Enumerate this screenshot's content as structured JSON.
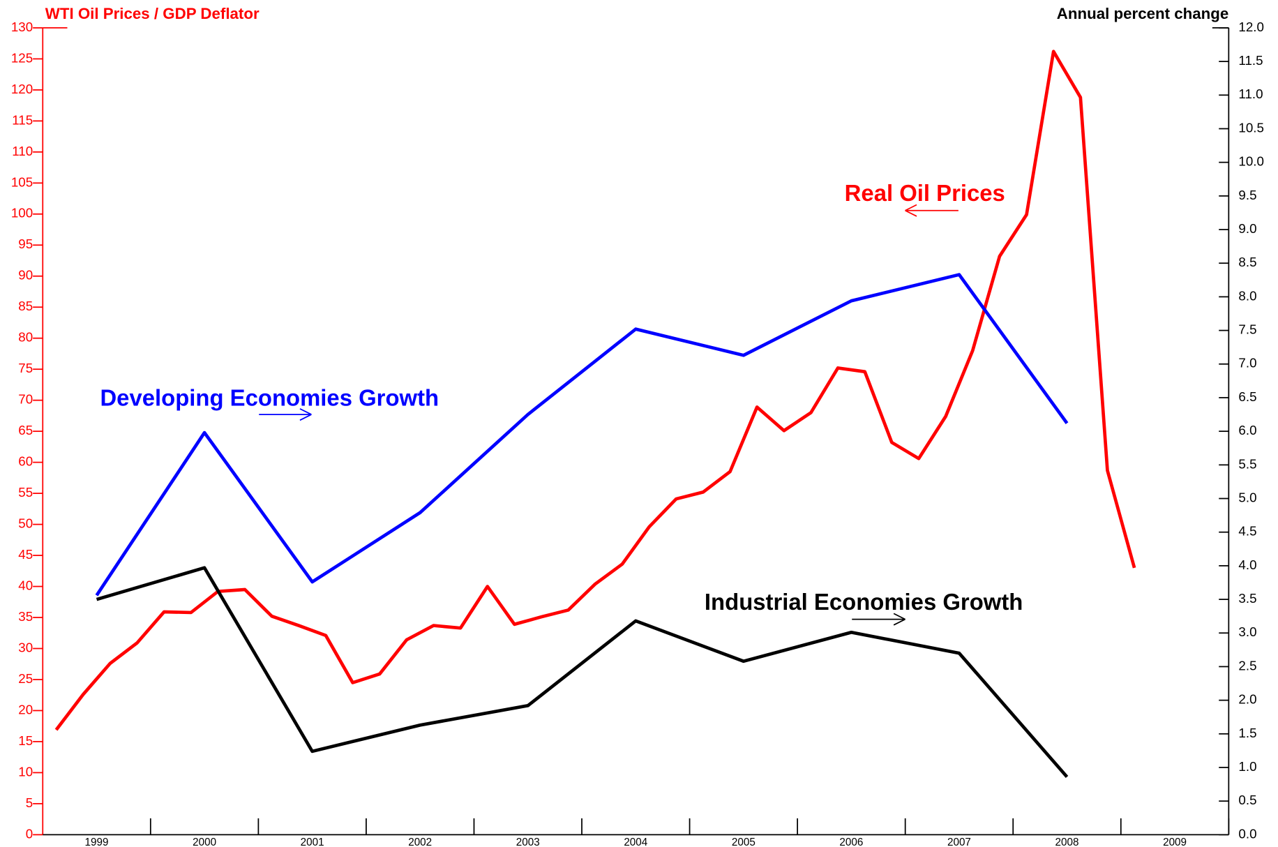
{
  "chart_data": {
    "type": "line",
    "title": "WTI Oil Prices / GDP Deflator",
    "y2_label": "Annual percent change",
    "xlim": [
      1998.5,
      2009.5
    ],
    "xticks": [
      1999,
      2000,
      2001,
      2002,
      2003,
      2004,
      2005,
      2006,
      2007,
      2008,
      2009
    ],
    "ylim": [
      0,
      130
    ],
    "yticks": [
      0,
      5,
      10,
      15,
      20,
      25,
      30,
      35,
      40,
      45,
      50,
      55,
      60,
      65,
      70,
      75,
      80,
      85,
      90,
      95,
      100,
      105,
      110,
      115,
      120,
      125,
      130
    ],
    "y2lim": [
      0,
      12
    ],
    "y2ticks": [
      {
        "value": 0,
        "label": "0.0"
      },
      {
        "value": 0.5,
        "label": "0.5"
      },
      {
        "value": 1,
        "label": "1.0"
      },
      {
        "value": 1.5,
        "label": "1.5"
      },
      {
        "value": 2,
        "label": "2.0"
      },
      {
        "value": 2.5,
        "label": "2.5"
      },
      {
        "value": 3,
        "label": "3.0"
      },
      {
        "value": 3.5,
        "label": "3.5"
      },
      {
        "value": 4,
        "label": "4.0"
      },
      {
        "value": 4.5,
        "label": "4.5"
      },
      {
        "value": 5,
        "label": "5.0"
      },
      {
        "value": 5.5,
        "label": "5.5"
      },
      {
        "value": 6,
        "label": "6.0"
      },
      {
        "value": 6.5,
        "label": "6.5"
      },
      {
        "value": 7,
        "label": "7.0"
      },
      {
        "value": 7.5,
        "label": "7.5"
      },
      {
        "value": 8,
        "label": "8.0"
      },
      {
        "value": 8.5,
        "label": "8.5"
      },
      {
        "value": 9,
        "label": "9.0"
      },
      {
        "value": 9.5,
        "label": "9.5"
      },
      {
        "value": 10,
        "label": "10.0"
      },
      {
        "value": 10.5,
        "label": "10.5"
      },
      {
        "value": 11,
        "label": "11.0"
      },
      {
        "value": 11.5,
        "label": "11.5"
      },
      {
        "value": 12,
        "label": "12.0"
      }
    ],
    "series": [
      {
        "name": "Real Oil Prices",
        "color": "#ff0000",
        "axis": "y",
        "x": [
          1998.625,
          1998.875,
          1999.125,
          1999.375,
          1999.625,
          1999.875,
          2000.125,
          2000.375,
          2000.625,
          2000.875,
          2001.125,
          2001.375,
          2001.625,
          2001.875,
          2002.125,
          2002.375,
          2002.625,
          2002.875,
          2003.125,
          2003.375,
          2003.625,
          2003.875,
          2004.125,
          2004.375,
          2004.625,
          2004.875,
          2005.125,
          2005.375,
          2005.625,
          2005.875,
          2006.125,
          2006.375,
          2006.625,
          2006.875,
          2007.125,
          2007.375,
          2007.625,
          2007.875,
          2008.125,
          2008.375,
          2008.625
        ],
        "values": [
          16.9,
          22.6,
          27.6,
          30.9,
          35.9,
          35.8,
          39.2,
          39.5,
          35.2,
          33.7,
          32.1,
          24.5,
          25.9,
          31.4,
          33.7,
          33.3,
          40.0,
          33.9,
          35.1,
          36.2,
          40.4,
          43.6,
          49.6,
          54.1,
          55.2,
          58.5,
          68.9,
          65.1,
          68.0,
          75.2,
          74.6,
          63.2,
          60.6,
          67.4,
          78.0,
          93.2,
          99.9,
          126.2,
          118.8,
          58.7,
          43.0
        ]
      },
      {
        "name": "Developing Economies Growth",
        "color": "#0000ff",
        "axis": "y2",
        "x": [
          1999,
          2000,
          2001,
          2002,
          2003,
          2004,
          2005,
          2006,
          2007,
          2008
        ],
        "values": [
          3.56,
          5.98,
          3.76,
          4.79,
          6.25,
          7.52,
          7.13,
          7.94,
          8.33,
          6.12
        ]
      },
      {
        "name": "Industrial Economies Growth",
        "color": "#000000",
        "axis": "y2",
        "x": [
          1999,
          2000,
          2001,
          2002,
          2003,
          2004,
          2005,
          2006,
          2007,
          2008
        ],
        "values": [
          3.5,
          3.97,
          1.24,
          1.63,
          1.92,
          3.18,
          2.58,
          3.01,
          2.7,
          0.86
        ]
      }
    ]
  }
}
